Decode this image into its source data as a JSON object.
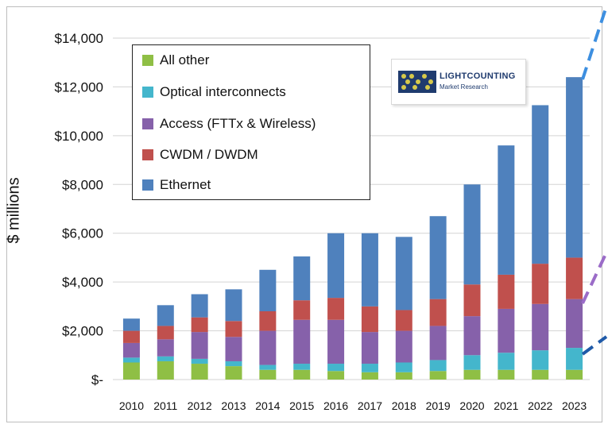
{
  "chart_data": {
    "type": "bar",
    "stacked": true,
    "ylabel": "$ millions",
    "xlabel": "",
    "ylim": [
      0,
      14000
    ],
    "yticks": [
      {
        "value": 0,
        "label": "$-"
      },
      {
        "value": 2000,
        "label": "$2,000"
      },
      {
        "value": 4000,
        "label": "$4,000"
      },
      {
        "value": 6000,
        "label": "$6,000"
      },
      {
        "value": 8000,
        "label": "$8,000"
      },
      {
        "value": 10000,
        "label": "$10,000"
      },
      {
        "value": 12000,
        "label": "$12,000"
      },
      {
        "value": 14000,
        "label": "$14,000"
      }
    ],
    "grid": "horizontal",
    "legend_position": "top-left",
    "categories": [
      "2010",
      "2011",
      "2012",
      "2013",
      "2014",
      "2015",
      "2016",
      "2017",
      "2018",
      "2019",
      "2020",
      "2021",
      "2022",
      "2023"
    ],
    "series": [
      {
        "name": "All other",
        "color": "#8fbf45",
        "values": [
          700,
          750,
          650,
          550,
          400,
          400,
          350,
          300,
          300,
          350,
          400,
          400,
          400,
          400
        ]
      },
      {
        "name": "Optical interconnects",
        "color": "#44b6cc",
        "values": [
          200,
          200,
          200,
          200,
          200,
          250,
          300,
          350,
          400,
          450,
          600,
          700,
          800,
          900
        ]
      },
      {
        "name": "Access (FTTx & Wireless)",
        "color": "#8661aa",
        "values": [
          600,
          700,
          1100,
          1000,
          1400,
          1800,
          1800,
          1300,
          1300,
          1400,
          1600,
          1800,
          1900,
          2000
        ]
      },
      {
        "name": "CWDM / DWDM",
        "color": "#c0504d",
        "values": [
          500,
          550,
          600,
          650,
          800,
          800,
          900,
          1050,
          850,
          1100,
          1300,
          1400,
          1650,
          1700
        ]
      },
      {
        "name": "Ethernet",
        "color": "#4f81bd",
        "values": [
          500,
          850,
          950,
          1300,
          1700,
          1800,
          2650,
          3000,
          3000,
          3400,
          4100,
          5300,
          6500,
          7400
        ]
      }
    ]
  },
  "legend": {
    "entries": [
      {
        "label": "All other",
        "color": "#8fbf45"
      },
      {
        "label": "Optical interconnects",
        "color": "#44b6cc"
      },
      {
        "label": "Access (FTTx & Wireless)",
        "color": "#8661aa"
      },
      {
        "label": "CWDM / DWDM",
        "color": "#c0504d"
      },
      {
        "label": "Ethernet",
        "color": "#4f81bd"
      }
    ]
  },
  "logo": {
    "name": "LIGHTCOUNTING",
    "subtitle": "Market Research",
    "icon": "abacus-logo-icon"
  },
  "overlay_lines": [
    {
      "name": "blue-dashed-trend",
      "color": "#3d8fe0"
    },
    {
      "name": "purple-dashed-trend",
      "color": "#9b6cc8"
    },
    {
      "name": "navy-dashed-trend",
      "color": "#1f5aa8"
    }
  ]
}
